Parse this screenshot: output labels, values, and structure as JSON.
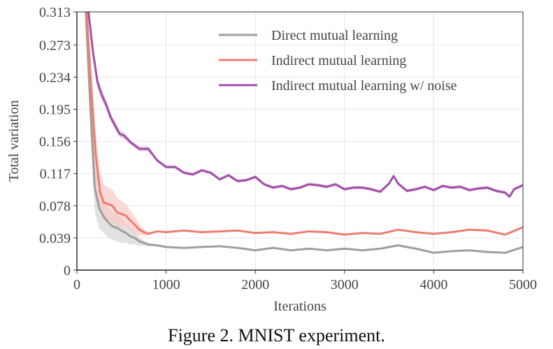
{
  "caption": "Figure 2. MNIST experiment.",
  "chart_data": {
    "type": "line",
    "title": "",
    "xlabel": "Iterations",
    "ylabel": "Total variation",
    "xlim": [
      0,
      5000
    ],
    "ylim": [
      0,
      0.313
    ],
    "xticks": [
      0,
      1000,
      2000,
      3000,
      4000,
      5000
    ],
    "xtick_labels": [
      "0",
      "1000",
      "2000",
      "3000",
      "4000",
      "5000"
    ],
    "yticks": [
      0,
      0.039,
      0.078,
      0.117,
      0.156,
      0.195,
      0.234,
      0.273,
      0.313
    ],
    "ytick_labels": [
      "0",
      "0.039",
      "0.078",
      "0.117",
      "0.156",
      "0.195",
      "0.234",
      "0.273",
      "0.313"
    ],
    "grid": true,
    "legend_position": "top-right",
    "series": [
      {
        "name": "Direct mutual learning",
        "color": "#9e9e9e",
        "band_color": "#d6d6d6",
        "x": [
          100,
          150,
          200,
          250,
          300,
          350,
          400,
          450,
          500,
          550,
          600,
          650,
          700,
          750,
          800,
          900,
          1000,
          1200,
          1400,
          1600,
          1800,
          2000,
          2200,
          2400,
          2600,
          2800,
          3000,
          3200,
          3400,
          3600,
          3800,
          4000,
          4200,
          4400,
          4600,
          4800,
          5000
        ],
        "y": [
          0.313,
          0.2,
          0.1,
          0.075,
          0.065,
          0.058,
          0.053,
          0.051,
          0.048,
          0.045,
          0.041,
          0.039,
          0.035,
          0.033,
          0.031,
          0.03,
          0.028,
          0.027,
          0.028,
          0.029,
          0.027,
          0.024,
          0.027,
          0.024,
          0.026,
          0.024,
          0.026,
          0.024,
          0.026,
          0.03,
          0.026,
          0.021,
          0.023,
          0.024,
          0.022,
          0.021,
          0.028
        ],
        "band": [
          0.0,
          0.03,
          0.03,
          0.025,
          0.02,
          0.018,
          0.016,
          0.016,
          0.015,
          0.012,
          0.01,
          0.008,
          0.005,
          0.003,
          0.002,
          0.001,
          0.001,
          0.001,
          0.001,
          0.001,
          0.001,
          0.001,
          0.001,
          0.001,
          0.001,
          0.001,
          0.001,
          0.001,
          0.001,
          0.001,
          0.001,
          0.001,
          0.001,
          0.001,
          0.001,
          0.001,
          0.001
        ]
      },
      {
        "name": "Indirect mutual learning",
        "color": "#ee7d6e",
        "band_color": "#f7cbc4",
        "x": [
          110,
          160,
          210,
          260,
          300,
          350,
          400,
          450,
          500,
          550,
          600,
          650,
          700,
          750,
          800,
          900,
          1000,
          1200,
          1400,
          1600,
          1800,
          2000,
          2200,
          2400,
          2600,
          2800,
          3000,
          3200,
          3400,
          3600,
          3800,
          4000,
          4200,
          4400,
          4600,
          4800,
          5000
        ],
        "y": [
          0.313,
          0.22,
          0.14,
          0.095,
          0.082,
          0.08,
          0.078,
          0.07,
          0.068,
          0.066,
          0.06,
          0.055,
          0.049,
          0.046,
          0.044,
          0.047,
          0.046,
          0.048,
          0.046,
          0.047,
          0.048,
          0.045,
          0.046,
          0.044,
          0.047,
          0.046,
          0.043,
          0.045,
          0.044,
          0.049,
          0.046,
          0.044,
          0.046,
          0.049,
          0.048,
          0.043,
          0.052
        ],
        "band": [
          0.0,
          0.03,
          0.03,
          0.025,
          0.022,
          0.02,
          0.02,
          0.018,
          0.016,
          0.014,
          0.012,
          0.01,
          0.007,
          0.004,
          0.002,
          0.001,
          0.001,
          0.001,
          0.001,
          0.001,
          0.001,
          0.001,
          0.001,
          0.001,
          0.001,
          0.001,
          0.001,
          0.001,
          0.001,
          0.001,
          0.001,
          0.001,
          0.001,
          0.001,
          0.001,
          0.001,
          0.001
        ]
      },
      {
        "name": "Indirect mutual learning w/ noise",
        "color": "#a34fa9",
        "band_color": "#dcc2df",
        "x": [
          130,
          180,
          230,
          280,
          330,
          380,
          430,
          480,
          530,
          600,
          700,
          800,
          900,
          1000,
          1100,
          1200,
          1300,
          1400,
          1500,
          1600,
          1700,
          1800,
          1900,
          2000,
          2100,
          2200,
          2300,
          2400,
          2500,
          2600,
          2700,
          2800,
          2900,
          3000,
          3100,
          3200,
          3300,
          3400,
          3500,
          3550,
          3600,
          3700,
          3800,
          3900,
          4000,
          4100,
          4200,
          4300,
          4400,
          4500,
          4600,
          4700,
          4800,
          4850,
          4900,
          5000
        ],
        "y": [
          0.313,
          0.265,
          0.228,
          0.212,
          0.2,
          0.185,
          0.175,
          0.165,
          0.163,
          0.155,
          0.147,
          0.147,
          0.133,
          0.125,
          0.125,
          0.118,
          0.116,
          0.121,
          0.118,
          0.11,
          0.115,
          0.108,
          0.109,
          0.113,
          0.104,
          0.1,
          0.102,
          0.098,
          0.1,
          0.104,
          0.103,
          0.101,
          0.104,
          0.098,
          0.1,
          0.1,
          0.098,
          0.095,
          0.105,
          0.114,
          0.105,
          0.096,
          0.098,
          0.101,
          0.097,
          0.102,
          0.1,
          0.101,
          0.097,
          0.099,
          0.1,
          0.096,
          0.094,
          0.089,
          0.098,
          0.103
        ],
        "band": [
          0.0,
          0.008,
          0.008,
          0.006,
          0.006,
          0.005,
          0.005,
          0.004,
          0.004,
          0.003,
          0.003,
          0.003,
          0.002,
          0.002,
          0.002,
          0.002,
          0.002,
          0.002,
          0.002,
          0.002,
          0.002,
          0.002,
          0.002,
          0.002,
          0.002,
          0.002,
          0.002,
          0.002,
          0.002,
          0.002,
          0.002,
          0.002,
          0.002,
          0.002,
          0.002,
          0.002,
          0.002,
          0.002,
          0.002,
          0.002,
          0.002,
          0.002,
          0.002,
          0.002,
          0.002,
          0.002,
          0.002,
          0.002,
          0.002,
          0.002,
          0.002,
          0.002,
          0.002,
          0.002,
          0.002,
          0.002
        ]
      }
    ]
  }
}
